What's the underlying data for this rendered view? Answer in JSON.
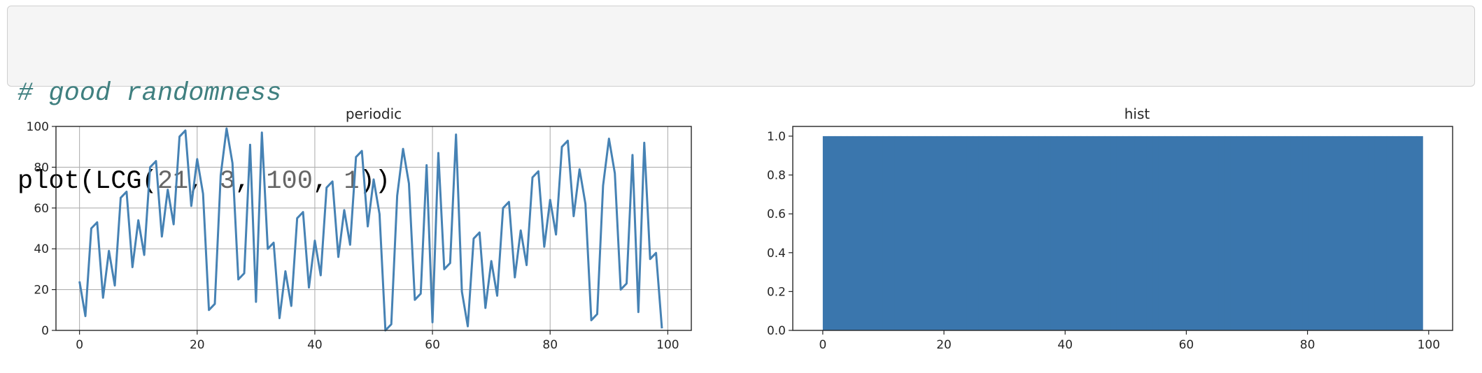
{
  "code_cell": {
    "comment": "# good randomness",
    "line2": {
      "fn_open": "plot(LCG(",
      "a": "21",
      "sep1": ", ",
      "b": "3",
      "sep2": ", ",
      "m": "100",
      "sep3": ", ",
      "seed": "1",
      "close": "))"
    }
  },
  "colors": {
    "code_bg": "#f5f5f5",
    "comment": "#408080",
    "number": "#666666",
    "series": "#4682b4",
    "bar": "#3a76ad",
    "grid": "#b0b0b0"
  },
  "chart_data": [
    {
      "type": "line",
      "title": "periodic",
      "xlabel": "",
      "ylabel": "",
      "grid": true,
      "xlim": [
        -4,
        104
      ],
      "ylim": [
        0,
        100
      ],
      "xticks": [
        0,
        20,
        40,
        60,
        80,
        100
      ],
      "yticks": [
        0,
        20,
        40,
        60,
        80,
        100
      ],
      "series": [
        {
          "x": [
            0,
            1,
            2,
            3,
            4,
            5,
            6,
            7,
            8,
            9,
            10,
            11,
            12,
            13,
            14,
            15,
            16,
            17,
            18,
            19,
            20,
            21,
            22,
            23,
            24,
            25,
            26,
            27,
            28,
            29,
            30,
            31,
            32,
            33,
            34,
            35,
            36,
            37,
            38,
            39,
            40,
            41,
            42,
            43,
            44,
            45,
            46,
            47,
            48,
            49,
            50,
            51,
            52,
            53,
            54,
            55,
            56,
            57,
            58,
            59,
            60,
            61,
            62,
            63,
            64,
            65,
            66,
            67,
            68,
            69,
            70,
            71,
            72,
            73,
            74,
            75,
            76,
            77,
            78,
            79,
            80,
            81,
            82,
            83,
            84,
            85,
            86,
            87,
            88,
            89,
            90,
            91,
            92,
            93,
            94,
            95,
            96,
            97,
            98,
            99
          ],
          "y": [
            24,
            7,
            50,
            53,
            16,
            39,
            22,
            65,
            68,
            31,
            54,
            37,
            80,
            83,
            46,
            69,
            52,
            95,
            98,
            61,
            84,
            67,
            10,
            13,
            76,
            99,
            82,
            25,
            28,
            91,
            14,
            97,
            40,
            43,
            6,
            29,
            12,
            55,
            58,
            21,
            44,
            27,
            70,
            73,
            36,
            59,
            42,
            85,
            88,
            51,
            74,
            57,
            0,
            3,
            66,
            89,
            72,
            15,
            18,
            81,
            4,
            87,
            30,
            33,
            96,
            19,
            2,
            45,
            48,
            11,
            34,
            17,
            60,
            63,
            26,
            49,
            32,
            75,
            78,
            41,
            64,
            47,
            90,
            93,
            56,
            79,
            62,
            5,
            8,
            71,
            94,
            77,
            20,
            23,
            86,
            9,
            92,
            35,
            38,
            1
          ]
        }
      ]
    },
    {
      "type": "bar",
      "title": "hist",
      "xlabel": "",
      "ylabel": "",
      "grid": false,
      "xlim": [
        -4.95,
        103.95
      ],
      "ylim": [
        0,
        1.05
      ],
      "xticks": [
        0,
        20,
        40,
        60,
        80,
        100
      ],
      "yticks": [
        "0.0",
        "0.2",
        "0.4",
        "0.6",
        "0.8",
        "1.0"
      ],
      "bins_start": 0,
      "bins_end": 99,
      "bin_count": 100,
      "bin_height": 1.0
    }
  ]
}
